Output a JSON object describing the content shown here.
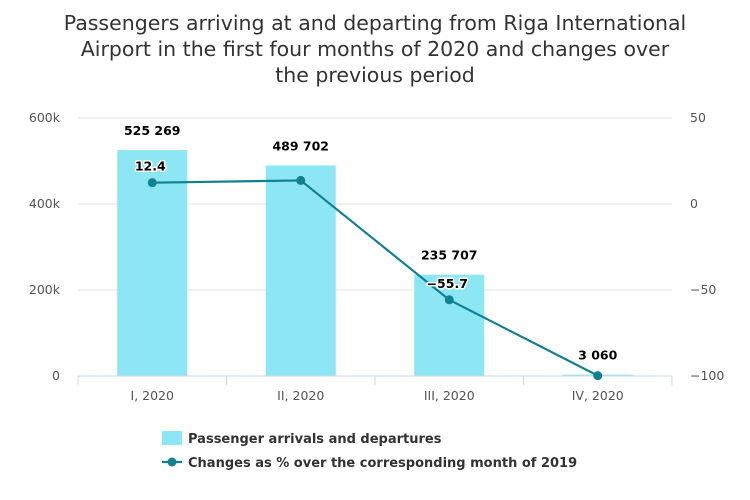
{
  "chart_data": {
    "type": "bar+line",
    "title_lines": [
      "Passengers arriving at and departing from Riga International",
      "Airport in the first four months of 2020 and changes over",
      "the previous period"
    ],
    "categories": [
      "I, 2020",
      "II, 2020",
      "III, 2020",
      "IV, 2020"
    ],
    "series": [
      {
        "name": "Passenger arrivals and departures",
        "type": "bar",
        "axis": "left",
        "values": [
          525269,
          489702,
          235707,
          3060
        ],
        "labels": [
          "525 269",
          "489 702",
          "235 707",
          "3 060"
        ],
        "color": "#8de6f4"
      },
      {
        "name": "Changes as % over the corresponding month of 2019",
        "type": "line",
        "axis": "right",
        "values": [
          12.4,
          13.7,
          -55.7,
          -99.8
        ],
        "labels": [
          "12.4",
          "",
          "−55.7",
          ""
        ],
        "color": "#11808f"
      }
    ],
    "y_left": {
      "min": 0,
      "max": 600000,
      "ticks": [
        0,
        200000,
        400000,
        600000
      ],
      "tick_labels": [
        "0",
        "200k",
        "400k",
        "600k"
      ]
    },
    "y_right": {
      "min": -100,
      "max": 50,
      "ticks": [
        -100,
        -50,
        0,
        50
      ],
      "tick_labels": [
        "−100",
        "−50",
        "0",
        "50"
      ]
    },
    "grid": true,
    "legend_position": "bottom-center"
  }
}
